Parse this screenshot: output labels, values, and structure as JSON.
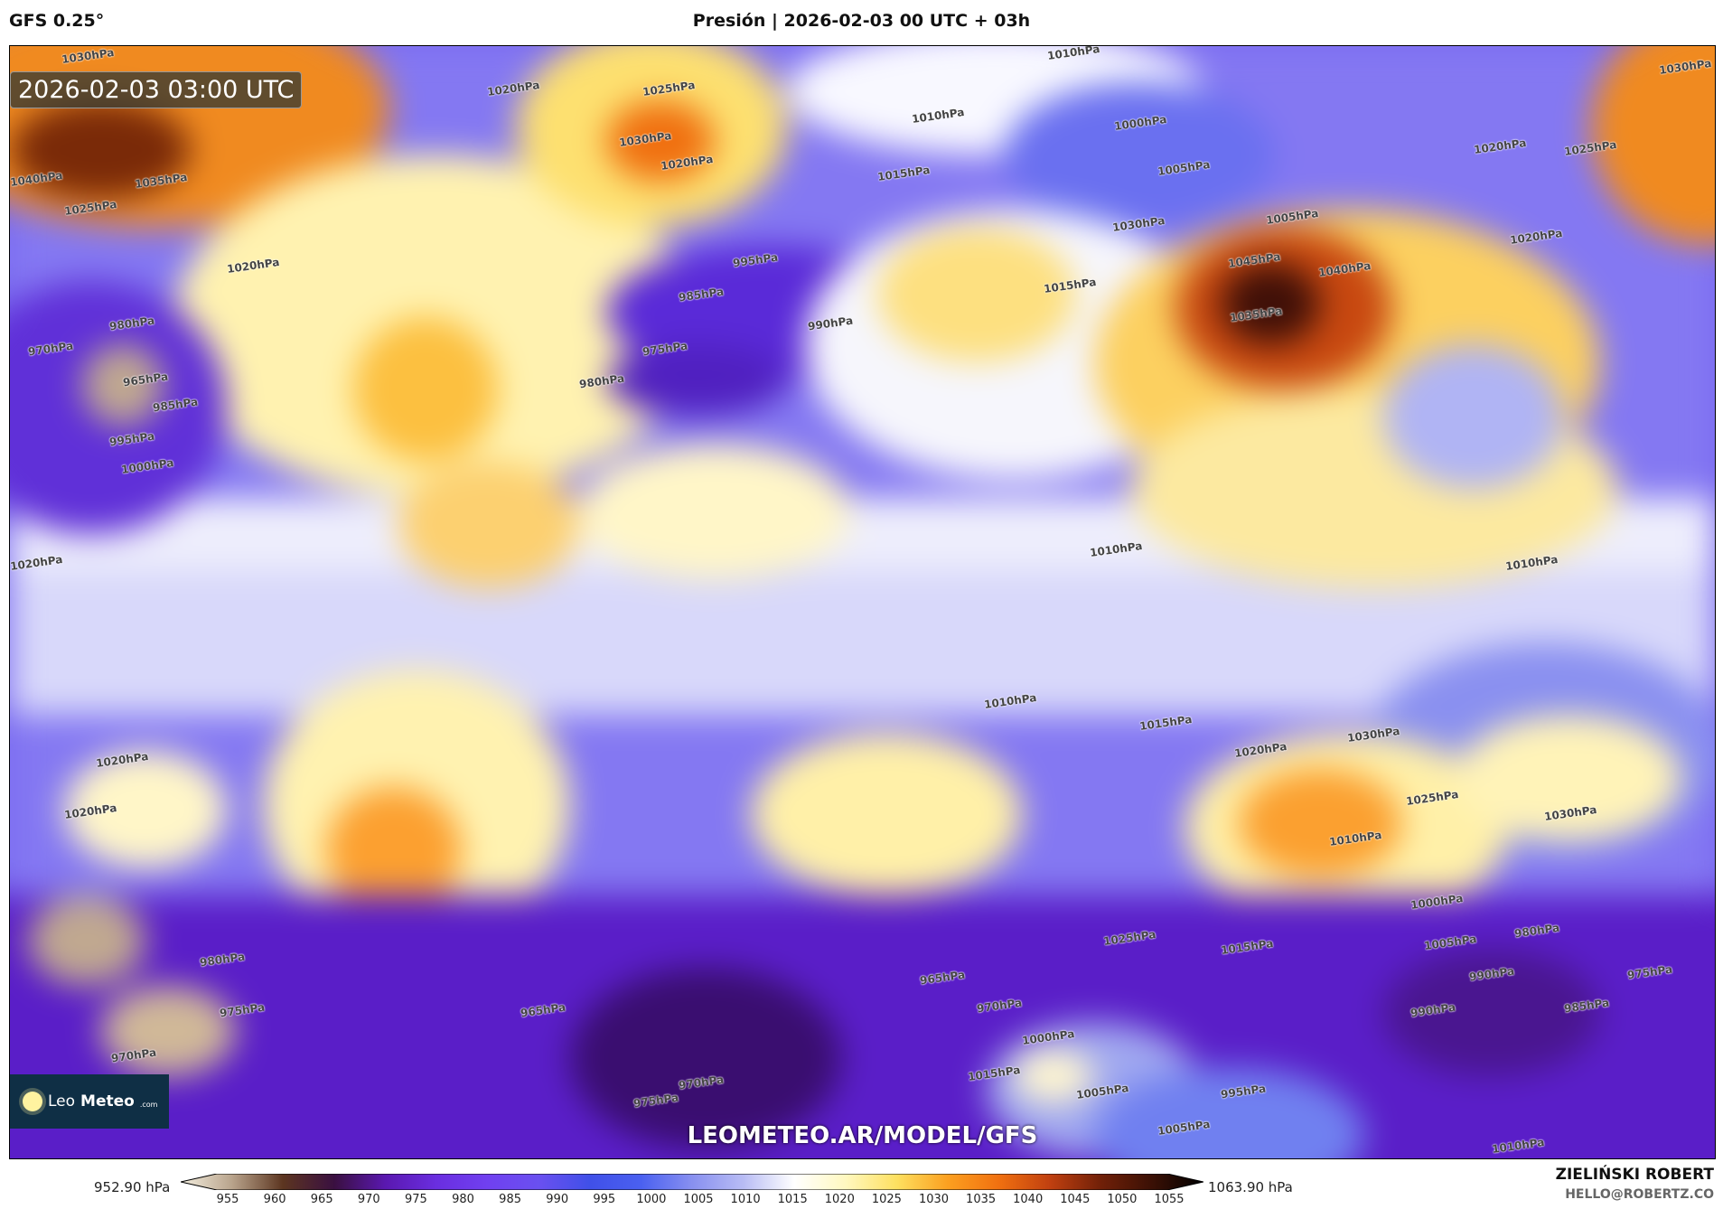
{
  "header": {
    "model": "GFS 0.25°",
    "title": "Presión | 2026-02-03 00 UTC + 03h"
  },
  "map": {
    "timestamp": "2026-02-03 03:00 UTC",
    "watermark": "LEOMETEO.AR/MODEL/GFS",
    "logo": {
      "leo": "Leo",
      "meteo": "Meteo",
      "dotcom": ".com",
      "icon": "sun-icon"
    },
    "contour_labels": [
      "1030hPa",
      "1010hPa",
      "1030hPa",
      "1020hPa",
      "1025hPa",
      "1030hPa",
      "1020hPa",
      "1010hPa",
      "1000hPa",
      "1005hPa",
      "1015hPa",
      "1040hPa",
      "1035hPa",
      "1025hPa",
      "1020hPa",
      "1025hPa",
      "1045hPa",
      "1040hPa",
      "1030hPa",
      "1035hPa",
      "1015hPa",
      "995hPa",
      "985hPa",
      "975hPa",
      "980hPa",
      "990hPa",
      "980hPa",
      "965hPa",
      "970hPa",
      "985hPa",
      "995hPa",
      "1000hPa",
      "1005hPa",
      "1020hPa",
      "1020hPa",
      "1020hPa",
      "1010hPa",
      "1010hPa",
      "1010hPa",
      "1015hPa",
      "1020hPa",
      "1030hPa",
      "1025hPa",
      "1020hPa",
      "1020hPa",
      "1030hPa",
      "1025hPa",
      "1015hPa",
      "1000hPa",
      "1005hPa",
      "990hPa",
      "985hPa",
      "980hPa",
      "970hPa",
      "965hPa",
      "970hPa",
      "975hPa",
      "975hPa",
      "965hPa",
      "970hPa",
      "990hPa",
      "980hPa",
      "1000hPa",
      "1015hPa",
      "1005hPa",
      "995hPa",
      "975hPa",
      "1005hPa",
      "1010hPa",
      "1010hPa"
    ]
  },
  "colorbar": {
    "min_label": "952.90 hPa",
    "max_label": "1063.90 hPa",
    "ticks": [
      "955",
      "960",
      "965",
      "970",
      "975",
      "980",
      "985",
      "990",
      "995",
      "1000",
      "1005",
      "1010",
      "1015",
      "1020",
      "1025",
      "1030",
      "1035",
      "1040",
      "1045",
      "1050",
      "1055"
    ],
    "colors": [
      "#f4efe0",
      "#b9a48c",
      "#5c3520",
      "#3a1040",
      "#5a18b0",
      "#6a2ee0",
      "#7040f0",
      "#6a50f0",
      "#4050e8",
      "#4a60f0",
      "#8890f0",
      "#b8bcf4",
      "#ffffff",
      "#fff8c0",
      "#fde060",
      "#fca020",
      "#f07010",
      "#c04010",
      "#702008",
      "#3a1005",
      "#000000"
    ]
  },
  "author": {
    "name": "ZIELIŃSKI ROBERT",
    "email": "HELLO@ROBERTZ.CO"
  }
}
